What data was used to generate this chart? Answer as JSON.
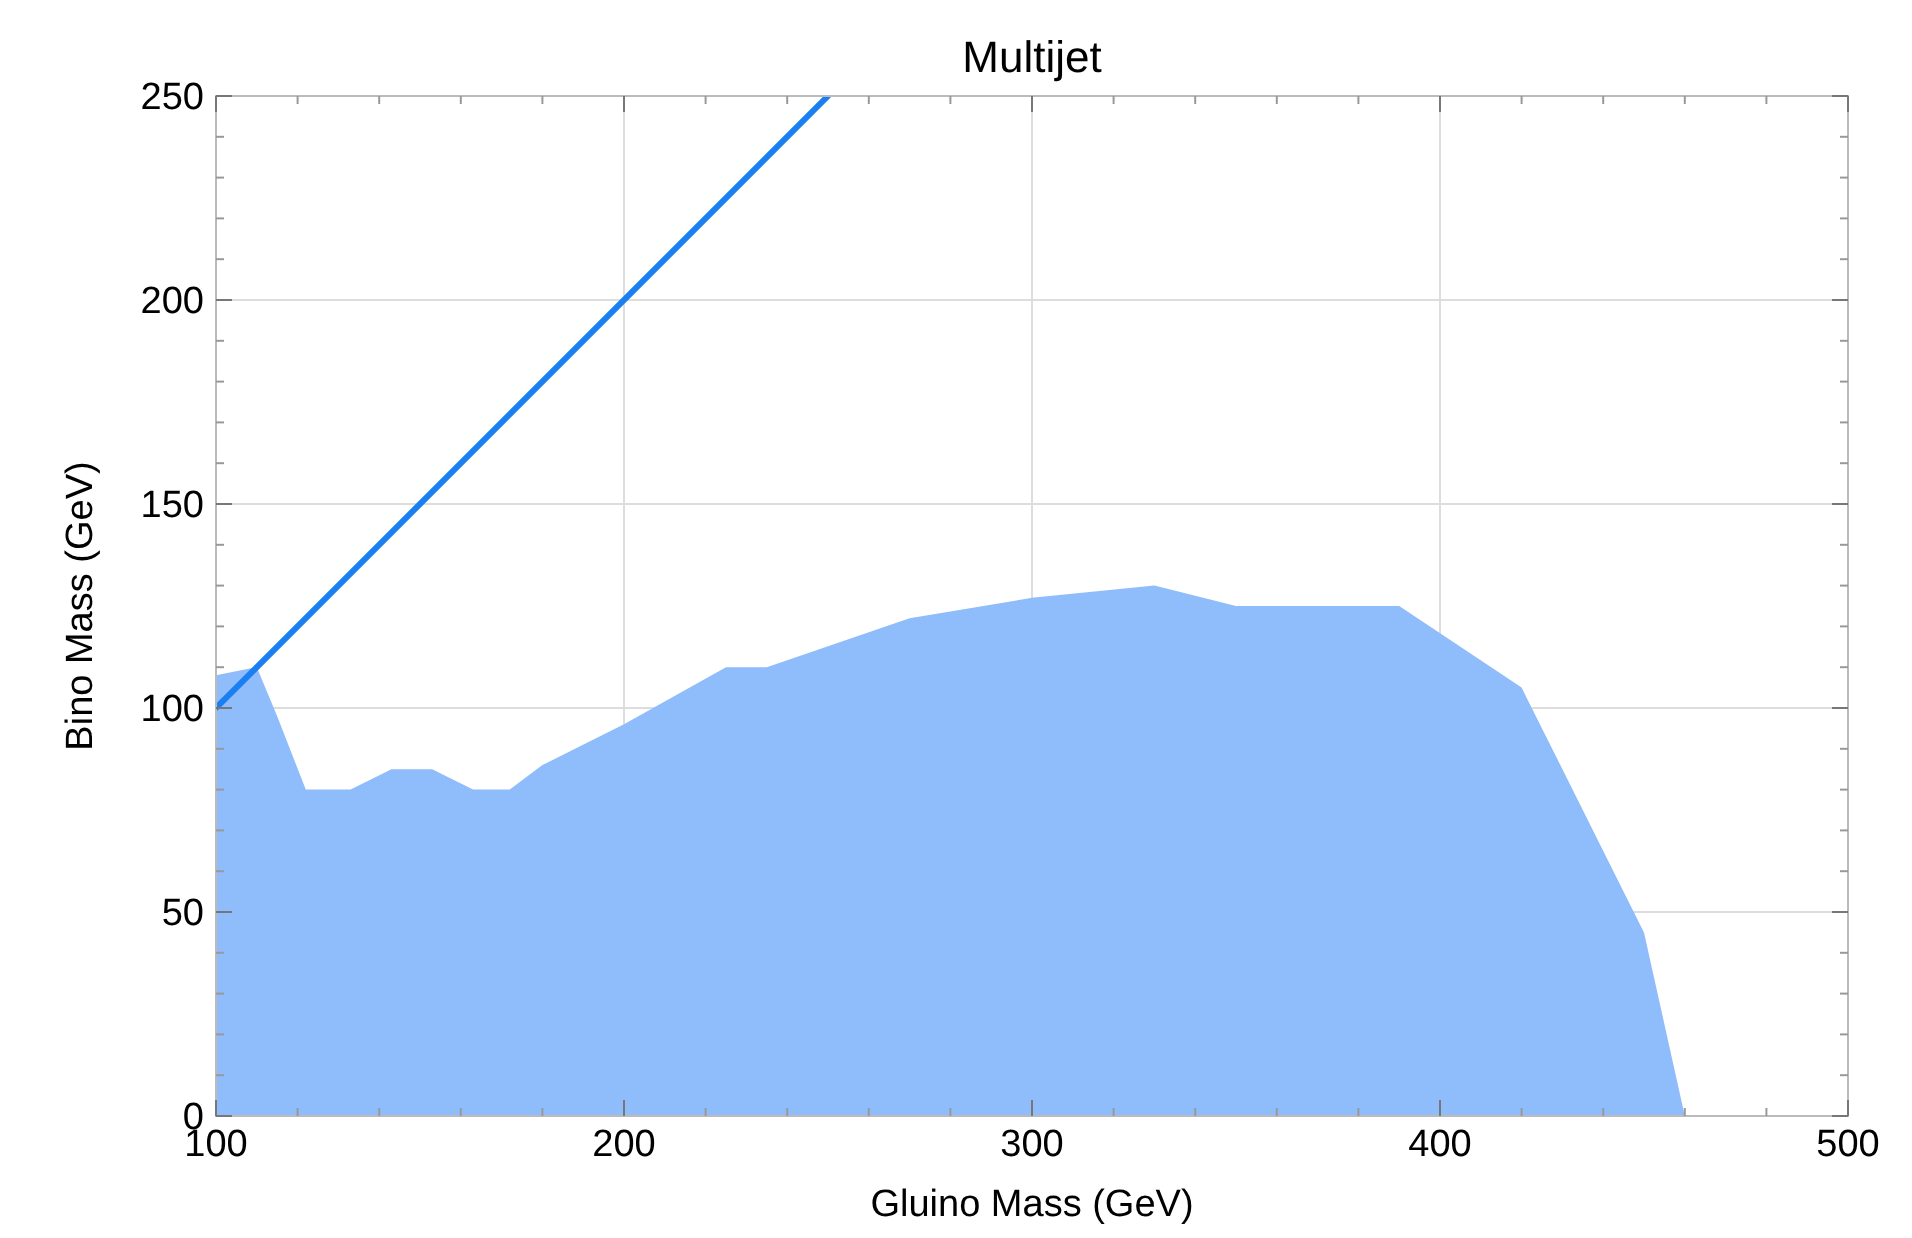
{
  "chart_data": {
    "type": "area",
    "title": "Multijet",
    "xlabel": "Gluino Mass (GeV)",
    "ylabel": "Bino Mass (GeV)",
    "xlim": [
      100,
      500
    ],
    "xticks": [
      100,
      200,
      300,
      400,
      500
    ],
    "ylim": [
      0,
      250
    ],
    "yticks": [
      0,
      50,
      100,
      150,
      200,
      250
    ],
    "grid": true,
    "series": [
      {
        "color": "#8fbcfb",
        "x": [
          100,
          110,
          115,
          122,
          133,
          143,
          153,
          163,
          172,
          180,
          188,
          200,
          225,
          235,
          270,
          300,
          330,
          350,
          390,
          420,
          450,
          460
        ],
        "values": [
          108,
          110,
          98,
          80,
          80,
          85,
          85,
          80,
          80,
          86,
          90,
          96,
          110,
          110,
          122,
          127,
          130,
          125,
          125,
          105,
          45,
          0
        ]
      },
      {
        "type": "line",
        "color": "#1a7ff0",
        "x": [
          100,
          250
        ],
        "values": [
          100,
          250
        ]
      }
    ]
  }
}
